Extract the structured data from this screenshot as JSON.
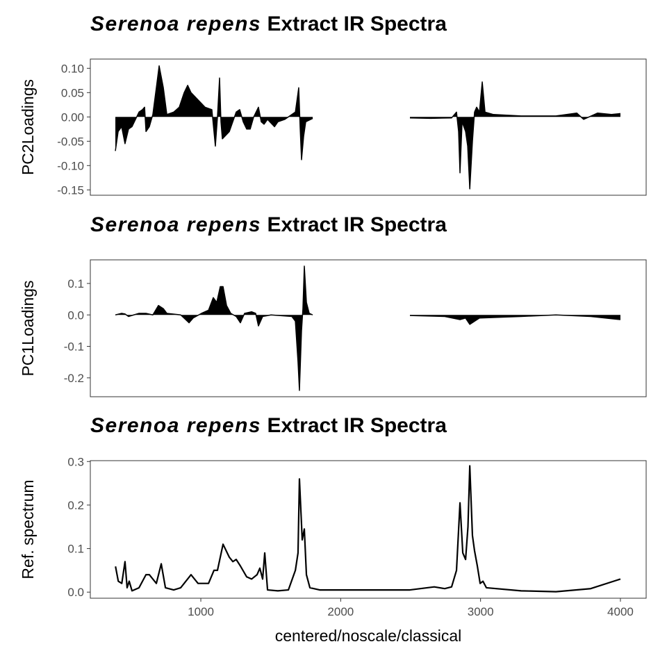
{
  "chart_data": [
    {
      "type": "area",
      "title_species": "Serenoa repens",
      "title": "Extract IR Spectra",
      "ylabel": "PC2Loadings",
      "color": "#000000",
      "xlim": [
        210,
        4184
      ],
      "ylim": [
        -0.161,
        0.119
      ],
      "yticks": [
        {
          "value": 0.1,
          "label": "0.10"
        },
        {
          "value": 0.05,
          "label": "0.05"
        },
        {
          "value": 0,
          "label": "0.00"
        },
        {
          "value": -0.05,
          "label": "-0.05"
        },
        {
          "value": -0.1,
          "label": "-0.10"
        },
        {
          "value": -0.15,
          "label": "-0.15"
        }
      ],
      "x": [
        389,
        409,
        434,
        458,
        483,
        508,
        558,
        583,
        598,
        608,
        632,
        657,
        682,
        702,
        732,
        757,
        806,
        846,
        881,
        906,
        930,
        980,
        1030,
        1079,
        1104,
        1119,
        1134,
        1144,
        1154,
        1204,
        1253,
        1278,
        1303,
        1328,
        1353,
        1378,
        1412,
        1432,
        1452,
        1477,
        1527,
        1551,
        1601,
        1676,
        1700,
        1710,
        1720,
        1735,
        1750,
        1800,
        2100,
        2495,
        2644,
        2793,
        2828,
        2843,
        2853,
        2868,
        2893,
        2908,
        2923,
        2942,
        2957,
        2972,
        2992,
        3012,
        3032,
        3092,
        3290,
        3539,
        3688,
        3737,
        3837,
        3936,
        4000
      ],
      "values": [
        -0.07,
        -0.03,
        -0.02,
        -0.055,
        -0.025,
        -0.02,
        0.01,
        0.015,
        0.02,
        -0.03,
        -0.02,
        0.005,
        0.06,
        0.105,
        0.06,
        0.005,
        0.01,
        0.02,
        0.05,
        0.065,
        0.05,
        0.035,
        0.02,
        0.015,
        -0.06,
        0,
        0.08,
        -0.01,
        -0.045,
        -0.03,
        0.01,
        0.015,
        -0.01,
        -0.025,
        -0.025,
        0,
        0.02,
        -0.01,
        -0.015,
        -0.005,
        -0.02,
        -0.01,
        -0.005,
        0.01,
        0.06,
        -0.02,
        -0.088,
        -0.04,
        -0.01,
        -0.003,
        null,
        -0.002,
        -0.003,
        -0.002,
        0.01,
        -0.03,
        -0.115,
        -0.01,
        -0.03,
        -0.06,
        -0.148,
        -0.05,
        0.01,
        0.02,
        0.01,
        0.072,
        0.01,
        0.005,
        0.002,
        0.002,
        0.008,
        -0.005,
        0.008,
        0.005,
        0.007
      ]
    },
    {
      "type": "area",
      "title_species": "Serenoa repens",
      "title": "Extract IR Spectra",
      "ylabel": "PC1Loadings",
      "color": "#000000",
      "xlim": [
        210,
        4184
      ],
      "ylim": [
        -0.26,
        0.175
      ],
      "yticks": [
        0.1,
        {
          "value": 0,
          "label": "0.0"
        },
        -0.1,
        -0.2
      ],
      "x": [
        389,
        434,
        458,
        483,
        558,
        608,
        657,
        697,
        732,
        757,
        856,
        916,
        945,
        1005,
        1055,
        1089,
        1114,
        1139,
        1159,
        1184,
        1214,
        1253,
        1283,
        1313,
        1363,
        1392,
        1412,
        1442,
        1502,
        1651,
        1676,
        1695,
        1705,
        1720,
        1730,
        1740,
        1755,
        1775,
        1800,
        2100,
        2495,
        2744,
        2853,
        2893,
        2923,
        2992,
        3290,
        3539,
        3787,
        4000
      ],
      "values": [
        0,
        0.005,
        0.003,
        -0.005,
        0.005,
        0.005,
        0,
        0.03,
        0.02,
        0.005,
        0,
        -0.025,
        -0.01,
        0.005,
        0.015,
        0.055,
        0.04,
        0.09,
        0.09,
        0.03,
        0.005,
        -0.005,
        -0.025,
        0.005,
        0.01,
        0.005,
        -0.035,
        -0.005,
        0,
        -0.005,
        -0.02,
        -0.15,
        -0.24,
        -0.05,
        0.02,
        0.155,
        0.04,
        0.005,
        0,
        null,
        -0.002,
        -0.005,
        -0.015,
        -0.01,
        -0.03,
        -0.01,
        -0.005,
        0,
        -0.005,
        -0.015
      ]
    },
    {
      "type": "line",
      "title_species": "Serenoa repens",
      "title": "Extract IR Spectra",
      "ylabel": "Ref. spectrum",
      "xlabel": "centered/noscale/classical",
      "color": "#000000",
      "xlim": [
        210,
        4184
      ],
      "ylim": [
        -0.014,
        0.302
      ],
      "xticks": [
        1000,
        2000,
        3000,
        4000
      ],
      "yticks": [
        0.3,
        0.2,
        0.1,
        {
          "value": 0,
          "label": "0.0"
        }
      ],
      "x": [
        390,
        410,
        435,
        458,
        473,
        488,
        508,
        558,
        608,
        632,
        657,
        682,
        717,
        747,
        806,
        856,
        930,
        980,
        1055,
        1094,
        1119,
        1159,
        1204,
        1229,
        1253,
        1283,
        1328,
        1363,
        1402,
        1422,
        1442,
        1457,
        1477,
        1551,
        1626,
        1676,
        1695,
        1705,
        1725,
        1740,
        1755,
        1780,
        1850,
        2495,
        2669,
        2744,
        2793,
        2828,
        2853,
        2873,
        2893,
        2910,
        2923,
        2942,
        2957,
        2977,
        2997,
        3017,
        3042,
        3290,
        3539,
        3787,
        4000
      ],
      "values": [
        0.059,
        0.025,
        0.02,
        0.07,
        0.01,
        0.025,
        0.003,
        0.01,
        0.04,
        0.04,
        0.03,
        0.02,
        0.065,
        0.01,
        0.005,
        0.01,
        0.04,
        0.02,
        0.02,
        0.05,
        0.05,
        0.11,
        0.08,
        0.07,
        0.075,
        0.06,
        0.035,
        0.03,
        0.04,
        0.055,
        0.03,
        0.09,
        0.005,
        0.003,
        0.005,
        0.05,
        0.09,
        0.26,
        0.12,
        0.145,
        0.04,
        0.01,
        0.005,
        0.005,
        0.012,
        0.008,
        0.012,
        0.05,
        0.205,
        0.09,
        0.075,
        0.15,
        0.29,
        0.13,
        0.095,
        0.06,
        0.02,
        0.025,
        0.01,
        0.003,
        0.001,
        0.008,
        0.03
      ]
    }
  ]
}
